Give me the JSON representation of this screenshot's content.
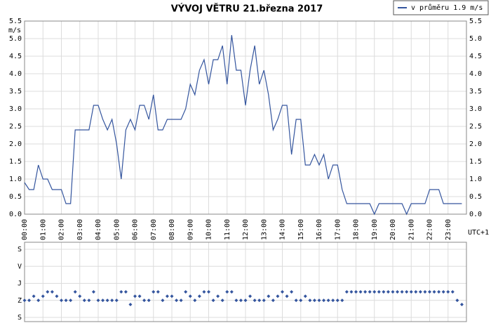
{
  "chart_data": [
    {
      "type": "line",
      "title": "VÝVOJ VĚTRU  21.března 2017",
      "y_label": "m/s",
      "x_label": "UTC+1",
      "categories": [
        "00:00",
        null,
        null,
        null,
        "01:00",
        null,
        null,
        null,
        "02:00",
        null,
        null,
        null,
        "03:00",
        null,
        null,
        null,
        "04:00",
        null,
        null,
        null,
        "05:00",
        null,
        null,
        null,
        "06:00",
        null,
        null,
        null,
        "07:00",
        null,
        null,
        null,
        "08:00",
        null,
        null,
        null,
        "09:00",
        null,
        null,
        null,
        "10:00",
        null,
        null,
        null,
        "11:00",
        null,
        null,
        null,
        "12:00",
        null,
        null,
        null,
        "13:00",
        null,
        null,
        null,
        "14:00",
        null,
        null,
        null,
        "15:00",
        null,
        null,
        null,
        "16:00",
        null,
        null,
        null,
        "17:00",
        null,
        null,
        null,
        "18:00",
        null,
        null,
        null,
        "19:00",
        null,
        null,
        null,
        "20:00",
        null,
        null,
        null,
        "21:00",
        null,
        null,
        null,
        "22:00",
        null,
        null,
        null,
        "23:00",
        null,
        null,
        null
      ],
      "series": [
        {
          "name": "v průměru 1.9 m/s",
          "color": "#34559e",
          "values": [
            0.9,
            0.7,
            0.7,
            1.4,
            1.0,
            1.0,
            0.7,
            0.7,
            0.7,
            0.3,
            0.3,
            2.4,
            2.4,
            2.4,
            2.4,
            3.1,
            3.1,
            2.7,
            2.4,
            2.7,
            2.0,
            1.0,
            2.4,
            2.7,
            2.4,
            3.1,
            3.1,
            2.7,
            3.4,
            2.4,
            2.4,
            2.7,
            2.7,
            2.7,
            2.7,
            3.0,
            3.7,
            3.4,
            4.1,
            4.4,
            3.7,
            4.4,
            4.4,
            4.8,
            3.7,
            5.1,
            4.1,
            4.1,
            3.1,
            4.1,
            4.8,
            3.7,
            4.1,
            3.4,
            2.4,
            2.7,
            3.1,
            3.1,
            1.7,
            2.7,
            2.7,
            1.4,
            1.4,
            1.7,
            1.4,
            1.7,
            1.0,
            1.4,
            1.4,
            0.7,
            0.3,
            0.3,
            0.3,
            0.3,
            0.3,
            0.3,
            0.0,
            0.3,
            0.3,
            0.3,
            0.3,
            0.3,
            0.3,
            0.0,
            0.3,
            0.3,
            0.3,
            0.3,
            0.7,
            0.7,
            0.7,
            0.3,
            0.3,
            0.3,
            0.3,
            0.3
          ]
        }
      ],
      "ylim": [
        0,
        5.5
      ],
      "yticks": [
        {
          "value": 0,
          "label": "0.0"
        },
        0.5,
        {
          "value": 1,
          "label": "1.0"
        },
        1.5,
        {
          "value": 2,
          "label": "2.0"
        },
        2.5,
        {
          "value": 3,
          "label": "3.0"
        },
        3.5,
        {
          "value": 4,
          "label": "4.0"
        },
        4.5,
        {
          "value": 5,
          "label": "5.0"
        },
        5.5
      ],
      "grid": true,
      "legend": "top-right"
    },
    {
      "type": "scatter",
      "color": "#34559e",
      "values": [
        270,
        270,
        248,
        270,
        248,
        225,
        225,
        248,
        270,
        270,
        270,
        225,
        248,
        270,
        270,
        225,
        270,
        270,
        270,
        270,
        270,
        225,
        225,
        292,
        248,
        248,
        270,
        270,
        225,
        225,
        270,
        248,
        248,
        270,
        270,
        225,
        248,
        270,
        248,
        225,
        225,
        270,
        248,
        270,
        225,
        225,
        270,
        270,
        270,
        248,
        270,
        270,
        270,
        248,
        270,
        248,
        225,
        248,
        225,
        270,
        270,
        248,
        270,
        270,
        270,
        270,
        270,
        270,
        270,
        270,
        225,
        225,
        225,
        225,
        225,
        225,
        225,
        225,
        225,
        225,
        225,
        225,
        225,
        225,
        225,
        225,
        225,
        225,
        225,
        225,
        225,
        225,
        225,
        225,
        270,
        292
      ],
      "ylim": [
        360,
        0
      ],
      "yticks": [
        {
          "value": 0,
          "label": "S"
        },
        {
          "value": 90,
          "label": "V"
        },
        {
          "value": 180,
          "label": "J"
        },
        {
          "value": 270,
          "label": "Z"
        },
        {
          "value": 360,
          "label": "S"
        }
      ],
      "grid": true
    }
  ]
}
